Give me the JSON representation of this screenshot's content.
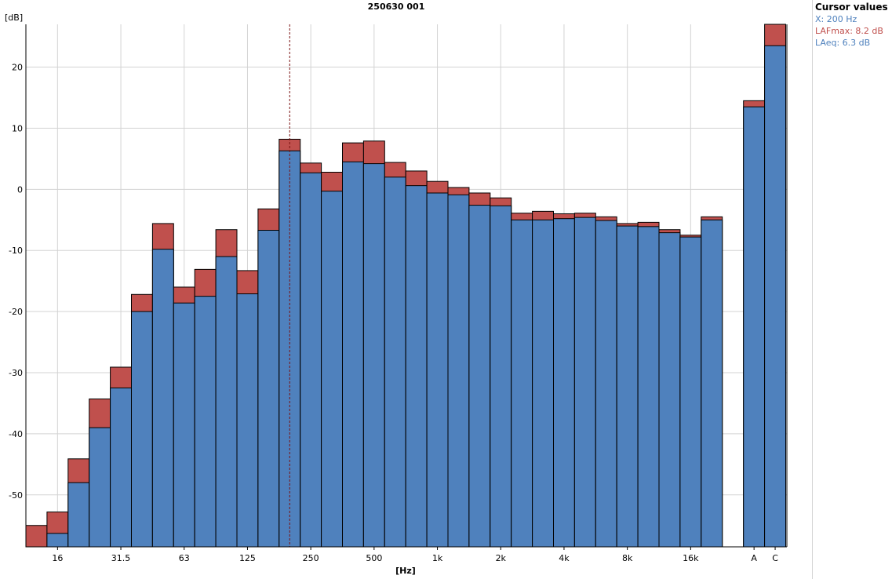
{
  "chart_data": {
    "type": "bar",
    "title": "250630 001",
    "xlabel": "[Hz]",
    "ylabel": "[dB]",
    "ylim": [
      -58.5,
      27
    ],
    "yticks": [
      20,
      10,
      0,
      -10,
      -20,
      -30,
      -40,
      -50
    ],
    "grid": true,
    "stacked_overlay": true,
    "categories": [
      "12.5",
      "16",
      "20",
      "25",
      "31.5",
      "40",
      "50",
      "63",
      "80",
      "100",
      "125",
      "160",
      "200",
      "250",
      "315",
      "400",
      "500",
      "630",
      "800",
      "1k",
      "1.25k",
      "1.6k",
      "2k",
      "2.5k",
      "3.15k",
      "4k",
      "5k",
      "6.3k",
      "8k",
      "10k",
      "12.5k",
      "16k",
      "20k",
      "A",
      "C"
    ],
    "x_tick_labels": {
      "16": "16",
      "31.5": "31.5",
      "63": "63",
      "125": "125",
      "250": "250",
      "500": "500",
      "1k": "1k",
      "2k": "2k",
      "4k": "4k",
      "8k": "8k",
      "16k": "16k",
      "A": "A",
      "C": "C"
    },
    "series": [
      {
        "name": "LAFmax",
        "color": "#c0504d",
        "values": [
          -55.0,
          -52.8,
          -44.1,
          -34.3,
          -29.1,
          -17.2,
          -5.6,
          -16.0,
          -13.1,
          -6.6,
          -13.3,
          -3.2,
          8.2,
          4.3,
          2.8,
          7.6,
          7.9,
          4.4,
          3.0,
          1.3,
          0.3,
          -0.6,
          -1.4,
          -3.9,
          -3.6,
          -4.0,
          -3.9,
          -4.5,
          -5.6,
          -5.4,
          -6.6,
          -7.5,
          -4.5,
          14.5,
          27.0
        ]
      },
      {
        "name": "LAeq",
        "color": "#4f81bd",
        "values": [
          -58.5,
          -56.3,
          -48.0,
          -39.0,
          -32.5,
          -20.0,
          -9.8,
          -18.6,
          -17.5,
          -11.0,
          -17.1,
          -6.7,
          6.3,
          2.7,
          -0.3,
          4.5,
          4.2,
          2.0,
          0.6,
          -0.6,
          -0.9,
          -2.6,
          -2.7,
          -5.0,
          -5.0,
          -4.8,
          -4.6,
          -5.1,
          -6.0,
          -6.1,
          -7.1,
          -7.8,
          -5.0,
          13.5,
          23.5
        ]
      }
    ],
    "cursor_category": "200"
  },
  "cursor_panel": {
    "title": "Cursor values",
    "x_text": "X: 200 Hz",
    "lafmax_text": "LAFmax: 8.2 dB",
    "laeq_text": "LAeq: 6.3 dB",
    "x_color": "#4f81bd",
    "lafmax_color": "#c0504d",
    "laeq_color": "#4f81bd"
  }
}
